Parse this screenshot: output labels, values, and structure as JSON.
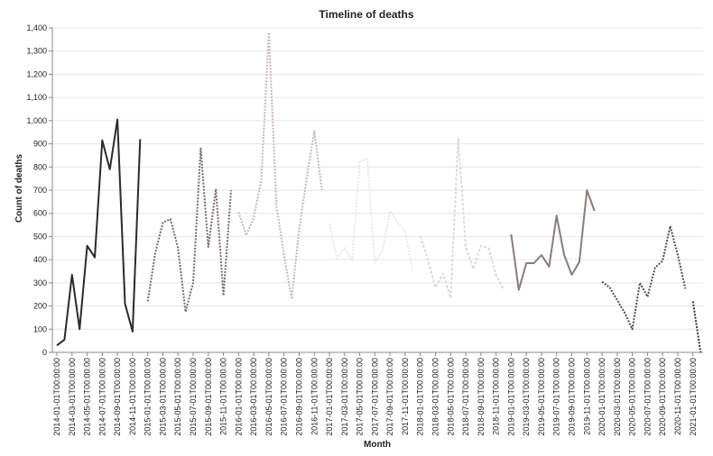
{
  "chart_data": {
    "type": "line",
    "title": "Timeline of deaths",
    "xlabel": "Month",
    "ylabel": "Count of deaths",
    "ylim": [
      0,
      1400
    ],
    "yticks": [
      0,
      100,
      200,
      300,
      400,
      500,
      600,
      700,
      800,
      900,
      1000,
      1100,
      1200,
      1300,
      1400
    ],
    "ytick_labels": [
      "0",
      "100",
      "200",
      "300",
      "400",
      "500",
      "600",
      "700",
      "800",
      "900",
      "1,000",
      "1,100",
      "1,200",
      "1,300",
      "1,400"
    ],
    "xtick_labels": [
      "2014-01-01T00:00:00",
      "2014-03-01T00:00:00",
      "2014-05-01T00:00:00",
      "2014-07-01T00:00:00",
      "2014-09-01T00:00:00",
      "2014-11-01T00:00:00",
      "2015-01-01T00:00:00",
      "2015-03-01T00:00:00",
      "2015-05-01T00:00:00",
      "2015-07-01T00:00:00",
      "2015-09-01T00:00:00",
      "2015-11-01T00:00:00",
      "2016-01-01T00:00:00",
      "2016-03-01T00:00:00",
      "2016-05-01T00:00:00",
      "2016-07-01T00:00:00",
      "2016-09-01T00:00:00",
      "2016-11-01T00:00:00",
      "2017-01-01T00:00:00",
      "2017-03-01T00:00:00",
      "2017-05-01T00:00:00",
      "2017-07-01T00:00:00",
      "2017-09-01T00:00:00",
      "2017-11-01T00:00:00",
      "2018-01-01T00:00:00",
      "2018-03-01T00:00:00",
      "2018-05-01T00:00:00",
      "2018-07-01T00:00:00",
      "2018-09-01T00:00:00",
      "2018-11-01T00:00:00",
      "2019-01-01T00:00:00",
      "2019-03-01T00:00:00",
      "2019-05-01T00:00:00",
      "2019-07-01T00:00:00",
      "2019-09-01T00:00:00",
      "2019-11-01T00:00:00",
      "2020-01-01T00:00:00",
      "2020-03-01T00:00:00",
      "2020-05-01T00:00:00",
      "2020-07-01T00:00:00",
      "2020-09-01T00:00:00",
      "2020-11-01T00:00:00",
      "2021-01-01T00:00:00"
    ],
    "grid": true,
    "legend": "none",
    "series": [
      {
        "color": "#2b2b2b",
        "dash": "",
        "values": [
          [
            1,
            30
          ],
          [
            2,
            55
          ],
          [
            3,
            335
          ],
          [
            4,
            100
          ],
          [
            5,
            460
          ],
          [
            6,
            410
          ],
          [
            7,
            915
          ],
          [
            8,
            790
          ],
          [
            9,
            1005
          ],
          [
            10,
            210
          ],
          [
            11,
            90
          ],
          [
            12,
            920
          ]
        ]
      },
      {
        "color": "#7a6a6a",
        "dash": "2,1.5",
        "values": [
          [
            1,
            220
          ],
          [
            2,
            430
          ],
          [
            3,
            560
          ],
          [
            4,
            575
          ],
          [
            5,
            450
          ],
          [
            6,
            175
          ],
          [
            7,
            300
          ],
          [
            8,
            880
          ],
          [
            9,
            455
          ],
          [
            10,
            705
          ],
          [
            11,
            245
          ],
          [
            12,
            700
          ]
        ]
      },
      {
        "color": "#c9b4b8",
        "dash": "2,1.5",
        "values": [
          [
            1,
            605
          ],
          [
            2,
            505
          ],
          [
            3,
            580
          ],
          [
            4,
            745
          ],
          [
            5,
            1380
          ],
          [
            6,
            635
          ],
          [
            7,
            420
          ],
          [
            8,
            230
          ],
          [
            9,
            530
          ],
          [
            10,
            755
          ],
          [
            11,
            955
          ],
          [
            12,
            700
          ]
        ]
      },
      {
        "color": "#e8e8e8",
        "dash": "2,1.5",
        "values": [
          [
            1,
            555
          ],
          [
            2,
            405
          ],
          [
            3,
            450
          ],
          [
            4,
            395
          ],
          [
            5,
            825
          ],
          [
            6,
            835
          ],
          [
            7,
            385
          ],
          [
            8,
            440
          ],
          [
            9,
            610
          ],
          [
            10,
            560
          ],
          [
            11,
            520
          ],
          [
            12,
            350
          ]
        ]
      },
      {
        "color": "#d9d9d9",
        "dash": "3,2",
        "values": [
          [
            1,
            500
          ],
          [
            2,
            400
          ],
          [
            3,
            280
          ],
          [
            4,
            340
          ],
          [
            5,
            235
          ],
          [
            6,
            925
          ],
          [
            7,
            455
          ],
          [
            8,
            360
          ],
          [
            9,
            460
          ],
          [
            10,
            450
          ],
          [
            11,
            335
          ],
          [
            12,
            270
          ]
        ]
      },
      {
        "color": "#8a7c7c",
        "dash": "",
        "values": [
          [
            1,
            510
          ],
          [
            2,
            270
          ],
          [
            3,
            385
          ],
          [
            4,
            385
          ],
          [
            5,
            420
          ],
          [
            6,
            370
          ],
          [
            7,
            590
          ],
          [
            8,
            420
          ],
          [
            9,
            335
          ],
          [
            10,
            390
          ],
          [
            11,
            700
          ],
          [
            12,
            610
          ]
        ]
      },
      {
        "color": "#5a4a4a",
        "dash": "2,1.5",
        "values": [
          [
            1,
            305
          ],
          [
            2,
            280
          ],
          [
            3,
            225
          ],
          [
            4,
            170
          ],
          [
            5,
            100
          ],
          [
            6,
            300
          ],
          [
            7,
            240
          ],
          [
            8,
            365
          ],
          [
            9,
            395
          ],
          [
            10,
            545
          ],
          [
            11,
            420
          ],
          [
            12,
            275
          ]
        ]
      },
      {
        "color": "#3a3434",
        "dash": "2,1.5",
        "values": [
          [
            1,
            220
          ],
          [
            2,
            0
          ]
        ]
      }
    ]
  }
}
